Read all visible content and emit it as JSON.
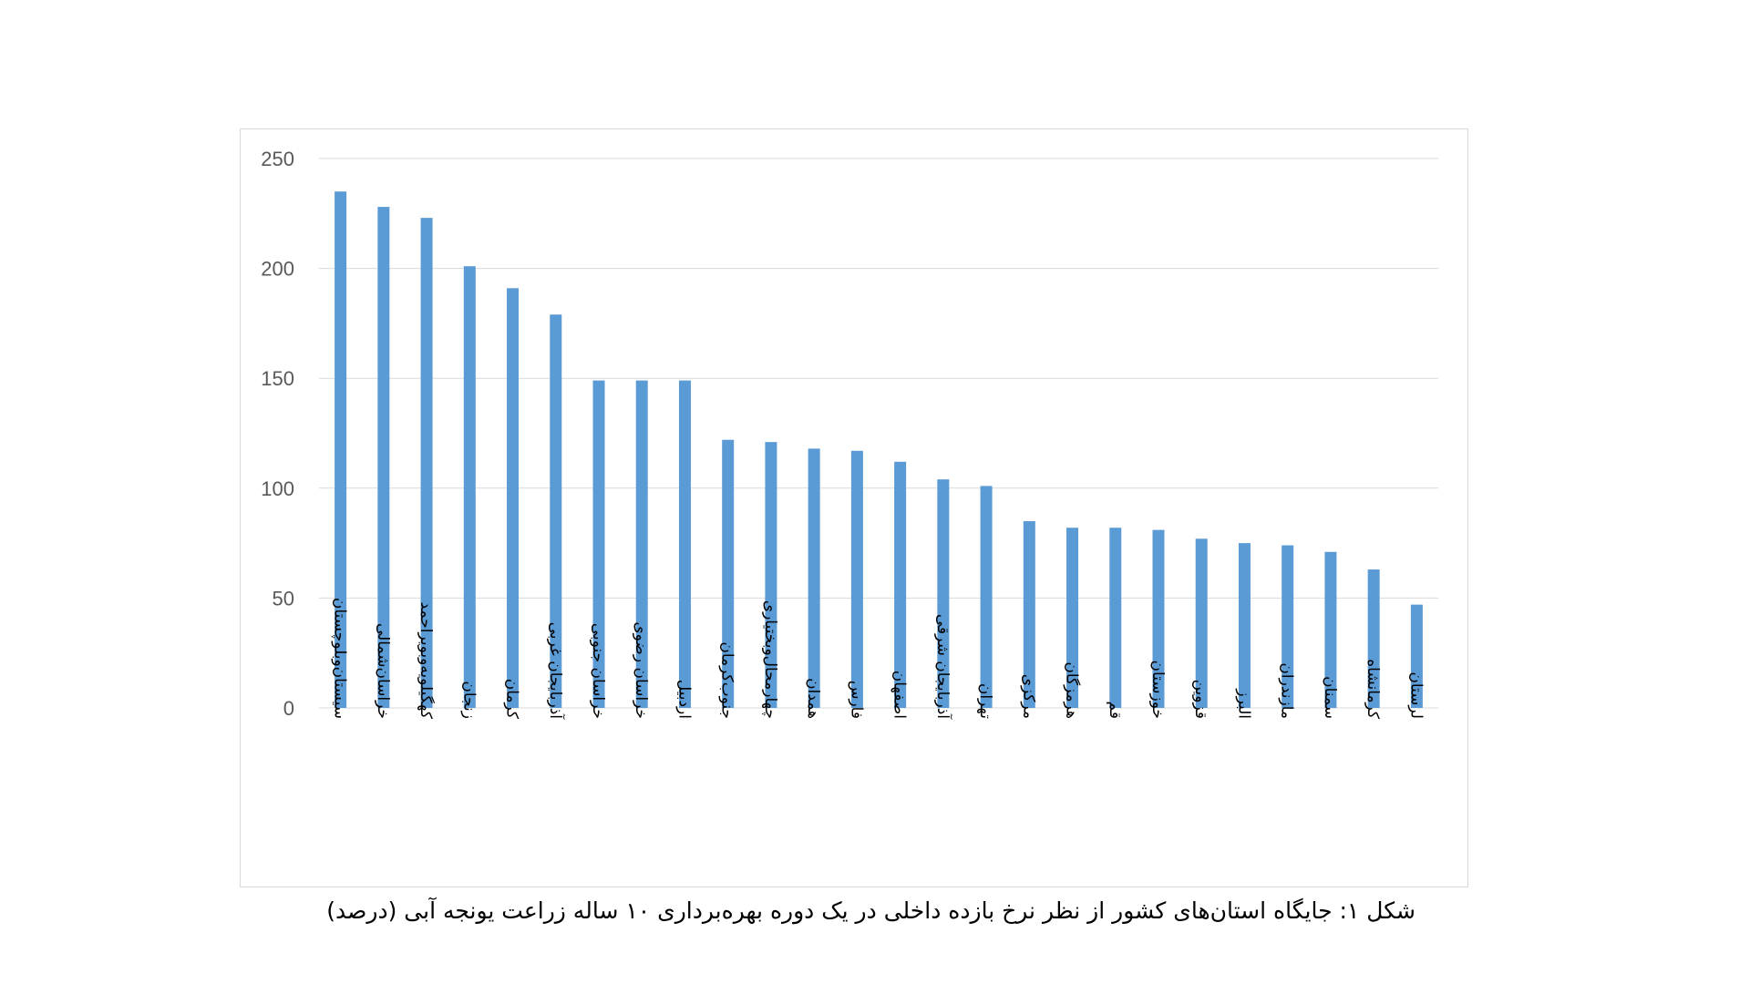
{
  "caption": "شکل ۱: جایگاه استان‌های کشور از نظر نرخ بازده داخلی در یک دوره بهره‌برداری ۱۰ ساله زراعت یونجه آبی (درصد)",
  "colors": {
    "bar": "#5b9bd5",
    "grid": "#d9d9d9",
    "axis_text": "#595959",
    "category_text": "#000000"
  },
  "chart_data": {
    "type": "bar",
    "orientation": "vertical",
    "categories": [
      "سیستان‌وبلوچستان",
      "خراسان‌شمالی",
      "کهگیلویه‌وبویراحمد",
      "زنجان",
      "کرمان",
      "آذربایجان غربی",
      "خراسان جنوبی",
      "خراسان رضوی",
      "اردبیل",
      "جنوب‌کرمان",
      "چهارمحال‌وبختیاری",
      "همدان",
      "فارس",
      "اصفهان",
      "آذربایجان شرقی",
      "تهران",
      "مرکزی",
      "هرمزگان",
      "قم",
      "خوزستان",
      "قزوین",
      "البرز",
      "مازندران",
      "سمنان",
      "کرمانشاه",
      "لرستان"
    ],
    "values": [
      235,
      228,
      223,
      201,
      191,
      179,
      149,
      149,
      149,
      122,
      121,
      118,
      117,
      112,
      104,
      101,
      85,
      82,
      82,
      81,
      77,
      75,
      74,
      71,
      63,
      47
    ],
    "ylim": [
      0,
      250
    ],
    "yticks": [
      "0",
      "50",
      "100",
      "150",
      "200",
      "250"
    ],
    "grid": true,
    "legend": "none",
    "title": "",
    "xlabel": "",
    "ylabel": ""
  }
}
